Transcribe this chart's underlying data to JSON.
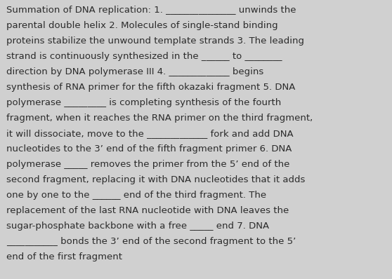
{
  "background_color": "#d0d0d0",
  "text_color": "#2b2b2b",
  "font_size": 9.5,
  "font_family": "DejaVu Sans",
  "lines": [
    "Summation of DNA replication: 1. _______________ unwinds the",
    "parental double helix 2. Molecules of single-stand binding",
    "proteins stabilize the unwound template strands 3. The leading",
    "strand is continuously synthesized in the ______ to ________",
    "direction by DNA polymerase III 4. _____________ begins",
    "synthesis of RNA primer for the fifth okazaki fragment 5. DNA",
    "polymerase _________ is completing synthesis of the fourth",
    "fragment, when it reaches the RNA primer on the third fragment,",
    "it will dissociate, move to the _____________ fork and add DNA",
    "nucleotides to the 3’ end of the fifth fragment primer 6. DNA",
    "polymerase _____ removes the primer from the 5’ end of the",
    "second fragment, replacing it with DNA nucleotides that it adds",
    "one by one to the ______ end of the third fragment. The",
    "replacement of the last RNA nucleotide with DNA leaves the",
    "sugar-phosphate backbone with a free _____ end 7. DNA",
    "___________ bonds the 3’ end of the second fragment to the 5’",
    "end of the first fragment"
  ]
}
